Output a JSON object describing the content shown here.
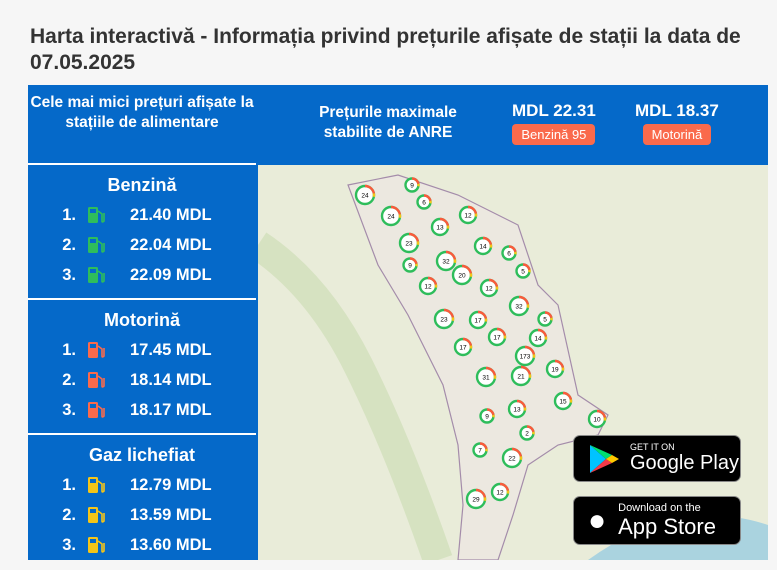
{
  "title": "Harta interactivă - Informația privind prețurile afișate de stații la data de 07.05.2025",
  "header": {
    "lowest_prices_heading": "Cele mai mici prețuri afișate la stațiile de alimentare",
    "max_prices_heading": "Prețurile maximale stabilite de ANRE",
    "max_prices": [
      {
        "value": "MDL 22.31",
        "fuel": "Benzină 95"
      },
      {
        "value": "MDL 18.37",
        "fuel": "Motorină"
      }
    ]
  },
  "sidebar": [
    {
      "fuel": "Benzină",
      "icon_color": "#2ebd5b",
      "items": [
        {
          "rank": "1.",
          "price": "21.40 MDL"
        },
        {
          "rank": "2.",
          "price": "22.04 MDL"
        },
        {
          "rank": "3.",
          "price": "22.09 MDL"
        }
      ]
    },
    {
      "fuel": "Motorină",
      "icon_color": "#fa6a4c",
      "items": [
        {
          "rank": "1.",
          "price": "17.45 MDL"
        },
        {
          "rank": "2.",
          "price": "18.14 MDL"
        },
        {
          "rank": "3.",
          "price": "18.17 MDL"
        }
      ]
    },
    {
      "fuel": "Gaz lichefiat",
      "icon_color": "#f5c518",
      "items": [
        {
          "rank": "1.",
          "price": "12.79 MDL"
        },
        {
          "rank": "2.",
          "price": "13.59 MDL"
        },
        {
          "rank": "3.",
          "price": "13.60 MDL"
        }
      ]
    }
  ],
  "map": {
    "clusters": [
      "24",
      "9",
      "6",
      "12",
      "24",
      "13",
      "23",
      "14",
      "6",
      "9",
      "32",
      "20",
      "5",
      "12",
      "12",
      "32",
      "23",
      "17",
      "5",
      "17",
      "14",
      "17",
      "173",
      "19",
      "31",
      "21",
      "15",
      "13",
      "9",
      "10",
      "2",
      "7",
      "22",
      "12",
      "29"
    ]
  },
  "stores": {
    "google": {
      "small": "GET IT ON",
      "big": "Google Play"
    },
    "apple": {
      "small": "Download on the",
      "big": "App Store"
    }
  }
}
